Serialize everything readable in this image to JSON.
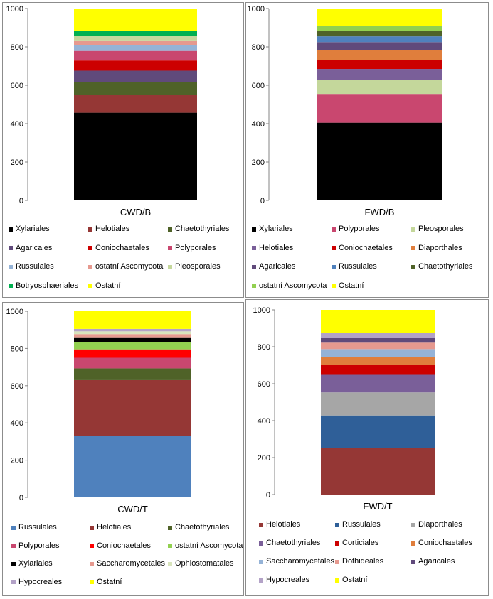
{
  "chart_data": [
    {
      "type": "bar",
      "stacked": true,
      "category": "CWD/B",
      "ylim": [
        0,
        1000
      ],
      "yticks": [
        "0",
        "200",
        "400",
        "600",
        "800",
        "1000"
      ],
      "series": [
        {
          "name": "Xylariales",
          "value": 457,
          "color": "#000000"
        },
        {
          "name": "Helotiales",
          "value": 93,
          "color": "#953735"
        },
        {
          "name": "Chaetothyriales",
          "value": 68,
          "color": "#4f6228"
        },
        {
          "name": "Agaricales",
          "value": 58,
          "color": "#604a7b"
        },
        {
          "name": "Coniochaetales",
          "value": 53,
          "color": "#cc0000"
        },
        {
          "name": "Polyporales",
          "value": 50,
          "color": "#c9476f"
        },
        {
          "name": "Russulales",
          "value": 30,
          "color": "#95b3d7"
        },
        {
          "name": "ostatní Ascomycota",
          "value": 25,
          "color": "#e6998f"
        },
        {
          "name": "Pleosporales",
          "value": 25,
          "color": "#c4d79b"
        },
        {
          "name": "Botryosphaeriales",
          "value": 23,
          "color": "#00b050"
        },
        {
          "name": "Ostatní",
          "value": 118,
          "color": "#ffff00"
        }
      ]
    },
    {
      "type": "bar",
      "stacked": true,
      "category": "FWD/B",
      "ylim": [
        0,
        1000
      ],
      "yticks": [
        "0",
        "200",
        "400",
        "600",
        "800",
        "1000"
      ],
      "series": [
        {
          "name": "Xylariales",
          "value": 405,
          "color": "#000000"
        },
        {
          "name": "Polyporales",
          "value": 150,
          "color": "#c9476f"
        },
        {
          "name": "Pleosporales",
          "value": 72,
          "color": "#c4d79b"
        },
        {
          "name": "Helotiales",
          "value": 58,
          "color": "#7a5f99"
        },
        {
          "name": "Coniochaetales",
          "value": 48,
          "color": "#cc0000"
        },
        {
          "name": "Diaporthales",
          "value": 52,
          "color": "#e07e3c"
        },
        {
          "name": "Agaricales",
          "value": 40,
          "color": "#604a7b"
        },
        {
          "name": "Russulales",
          "value": 30,
          "color": "#4f81bd"
        },
        {
          "name": "Chaetothyriales",
          "value": 30,
          "color": "#4f6228"
        },
        {
          "name": "ostatní Ascomycota",
          "value": 23,
          "color": "#92d050"
        },
        {
          "name": "Ostatní",
          "value": 92,
          "color": "#ffff00"
        }
      ]
    },
    {
      "type": "bar",
      "stacked": true,
      "category": "CWD/T",
      "ylim": [
        0,
        1000
      ],
      "yticks": [
        "0",
        "200",
        "400",
        "600",
        "800",
        "1000"
      ],
      "series": [
        {
          "name": "Russulales",
          "value": 330,
          "color": "#4f81bd"
        },
        {
          "name": "Helotiales",
          "value": 300,
          "color": "#953735"
        },
        {
          "name": "Chaetothyriales",
          "value": 63,
          "color": "#4f6228"
        },
        {
          "name": "Polyporales",
          "value": 57,
          "color": "#c9476f"
        },
        {
          "name": "Coniochaetales",
          "value": 45,
          "color": "#ff0000"
        },
        {
          "name": "ostatní Ascomycota",
          "value": 40,
          "color": "#92d050"
        },
        {
          "name": "Xylariales",
          "value": 25,
          "color": "#000000"
        },
        {
          "name": "Saccharomycetales",
          "value": 17,
          "color": "#e6998f"
        },
        {
          "name": "Ophiostomatales",
          "value": 15,
          "color": "#d8e4bc"
        },
        {
          "name": "Hypocreales",
          "value": 13,
          "color": "#b3a2c7"
        },
        {
          "name": "Ostatní",
          "value": 95,
          "color": "#ffff00"
        }
      ]
    },
    {
      "type": "bar",
      "stacked": true,
      "category": "FWD/T",
      "ylim": [
        0,
        1000
      ],
      "yticks": [
        "0",
        "200",
        "400",
        "600",
        "800",
        "1000"
      ],
      "series": [
        {
          "name": "Helotiales",
          "value": 250,
          "color": "#953735"
        },
        {
          "name": "Russulales",
          "value": 178,
          "color": "#2f5f98"
        },
        {
          "name": "Diaporthales",
          "value": 125,
          "color": "#a6a6a6"
        },
        {
          "name": "Chaetothyriales",
          "value": 95,
          "color": "#7a5f99"
        },
        {
          "name": "Corticiales",
          "value": 52,
          "color": "#cc0000"
        },
        {
          "name": "Coniochaetales",
          "value": 45,
          "color": "#e07e3c"
        },
        {
          "name": "Saccharomycetales",
          "value": 42,
          "color": "#95b3d7"
        },
        {
          "name": "Dothideales",
          "value": 35,
          "color": "#e6998f"
        },
        {
          "name": "Agaricales",
          "value": 28,
          "color": "#604a7b"
        },
        {
          "name": "Hypocreales",
          "value": 25,
          "color": "#b3a2c7"
        },
        {
          "name": "Ostatní",
          "value": 125,
          "color": "#ffff00"
        }
      ]
    }
  ]
}
